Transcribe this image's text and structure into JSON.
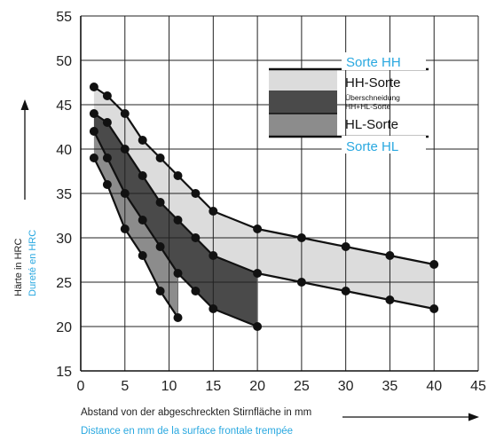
{
  "chart_data": {
    "type": "line",
    "xlabel_de": "Abstand von der abgeschreckten Stirnfläche in mm",
    "xlabel_fr": "Distance en mm de la surface frontale trempée",
    "ylabel_de": "Härte in HRC",
    "ylabel_fr": "Dureté en HRC",
    "xlim": [
      0,
      45
    ],
    "ylim": [
      15,
      55
    ],
    "x_ticks": [
      0,
      5,
      10,
      15,
      20,
      25,
      30,
      35,
      40,
      45
    ],
    "y_ticks": [
      15,
      20,
      25,
      30,
      35,
      40,
      45,
      50,
      55
    ],
    "grid": true,
    "series": [
      {
        "key": "hh_upper",
        "x": [
          1.5,
          3,
          5,
          7,
          9,
          11,
          13,
          15,
          20,
          25,
          30,
          35,
          40
        ],
        "y": [
          47,
          46,
          44,
          41,
          39,
          37,
          35,
          33,
          31,
          30,
          29,
          28,
          27
        ]
      },
      {
        "key": "hh_lower",
        "x": [
          1.5,
          3,
          5,
          7,
          9,
          11,
          13,
          15,
          20
        ],
        "y": [
          42,
          39,
          35,
          32,
          29,
          26,
          24,
          22,
          20
        ]
      },
      {
        "key": "hl_upper",
        "x": [
          1.5,
          3,
          5,
          7,
          9,
          11,
          13,
          15,
          20,
          25,
          30,
          35,
          40
        ],
        "y": [
          44,
          43,
          40,
          37,
          34,
          32,
          30,
          28,
          26,
          25,
          24,
          23,
          22
        ]
      },
      {
        "key": "hl_lower",
        "x": [
          1.5,
          3,
          5,
          7,
          9,
          11
        ],
        "y": [
          39,
          36,
          31,
          28,
          24,
          21
        ]
      }
    ],
    "bands": [
      {
        "name": "HH-Sorte",
        "upper": "hh_upper",
        "lower": "hl_upper",
        "color": "#dcdcdc"
      },
      {
        "name": "Überschneidung HH+HL-Sorte",
        "upper": "hl_upper",
        "lower": "hh_lower",
        "color": "#4a4a4a"
      },
      {
        "name": "HL-Sorte",
        "upper": "hh_lower",
        "lower": "hl_lower",
        "color": "#8c8c8c"
      }
    ],
    "legend": {
      "placement": "top-right",
      "sorte_hh_fr": "Sorte HH",
      "hh_sorte": "HH-Sorte",
      "overlap_line1": "Überschneidung",
      "overlap_line2": "HH+HL-Sorte",
      "hl_sorte": "HL-Sorte",
      "sorte_hl_fr": "Sorte HL"
    }
  },
  "colors": {
    "line": "#111111",
    "grid": "#222222",
    "french_text": "#29a8e0",
    "hh_band": "#dcdcdc",
    "overlap_band": "#4a4a4a",
    "hl_band": "#8c8c8c"
  }
}
